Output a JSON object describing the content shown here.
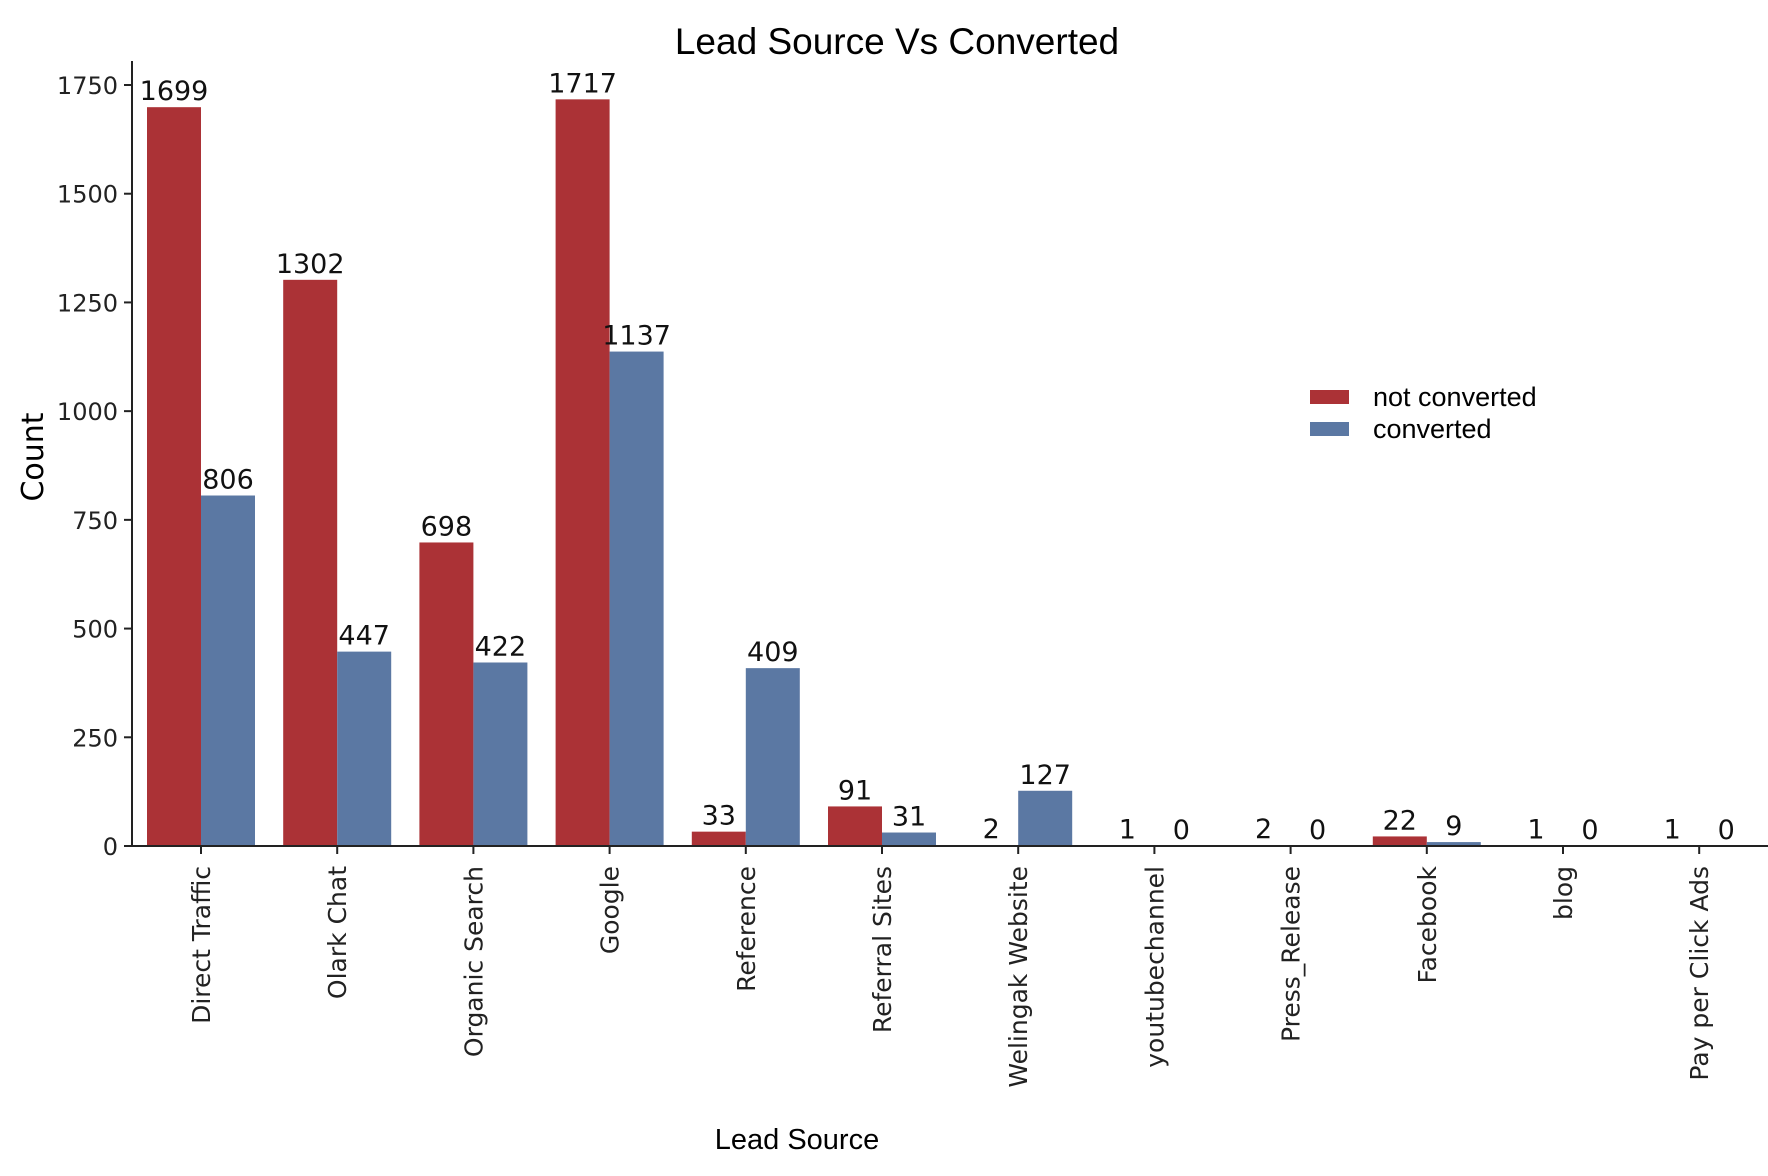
{
  "chart_data": {
    "type": "bar",
    "title": "Lead Source Vs Converted",
    "xlabel": "Lead Source",
    "ylabel": "Count",
    "ylim": [
      0,
      1800
    ],
    "yticks": [
      0,
      250,
      500,
      750,
      1000,
      1250,
      1500,
      1750
    ],
    "categories": [
      "Direct Traffic",
      "Olark Chat",
      "Organic Search",
      "Google",
      "Reference",
      "Referral Sites",
      "Welingak Website",
      "youtubechannel",
      "Press_Release",
      "Facebook",
      "blog",
      "Pay per Click Ads"
    ],
    "series": [
      {
        "name": "not converted",
        "color": "#ab3236",
        "values": [
          1699,
          1302,
          698,
          1717,
          33,
          91,
          2,
          1,
          2,
          22,
          1,
          1
        ]
      },
      {
        "name": "converted",
        "color": "#5b78a3",
        "values": [
          806,
          447,
          422,
          1137,
          409,
          31,
          127,
          0,
          0,
          9,
          0,
          0
        ]
      }
    ],
    "legend_position": "right",
    "grid": false,
    "data_labels": true
  }
}
